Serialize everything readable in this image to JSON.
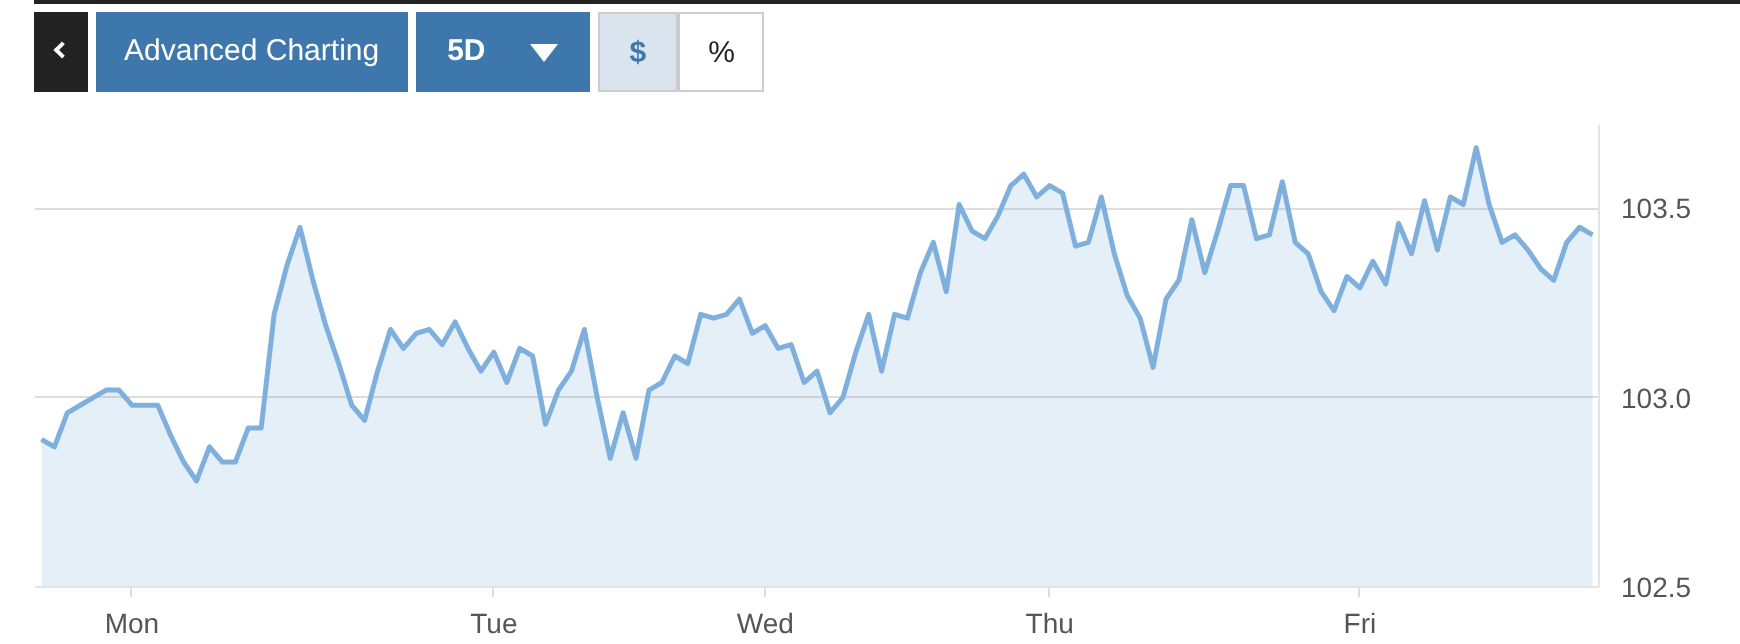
{
  "chart_data": {
    "type": "area",
    "color": "#7fb0dd",
    "categories": [
      null,
      null,
      null,
      null,
      null,
      null,
      null,
      "Mon",
      null,
      null,
      null,
      null,
      null,
      null,
      null,
      null,
      null,
      null,
      null,
      null,
      null,
      null,
      null,
      null,
      null,
      null,
      null,
      null,
      null,
      null,
      null,
      null,
      null,
      null,
      null,
      "Tue",
      null,
      null,
      null,
      null,
      null,
      null,
      null,
      null,
      null,
      null,
      null,
      null,
      null,
      null,
      null,
      null,
      null,
      null,
      null,
      null,
      "Wed",
      null,
      null,
      null,
      null,
      null,
      null,
      null,
      null,
      null,
      null,
      null,
      null,
      null,
      null,
      null,
      null,
      null,
      null,
      null,
      null,
      null,
      "Thu",
      null,
      null,
      null,
      null,
      null,
      null,
      null,
      null,
      null,
      null,
      null,
      null,
      null,
      null,
      null,
      null,
      null,
      null,
      null,
      null,
      null,
      null,
      null,
      "Fri",
      null,
      null,
      null,
      null,
      null,
      null,
      null,
      null,
      null,
      null,
      null,
      null,
      null,
      null,
      null,
      null,
      null,
      null
    ],
    "values": [
      102.89,
      102.87,
      102.96,
      102.98,
      103.0,
      103.02,
      103.02,
      102.98,
      102.98,
      102.98,
      102.9,
      102.83,
      102.78,
      102.87,
      102.83,
      102.83,
      102.92,
      102.92,
      103.22,
      103.35,
      103.45,
      103.31,
      103.19,
      103.09,
      102.98,
      102.94,
      103.07,
      103.18,
      103.13,
      103.17,
      103.18,
      103.14,
      103.2,
      103.13,
      103.07,
      103.12,
      103.04,
      103.13,
      103.11,
      102.93,
      103.02,
      103.07,
      103.18,
      103.0,
      102.84,
      102.96,
      102.84,
      103.02,
      103.04,
      103.11,
      103.09,
      103.22,
      103.21,
      103.22,
      103.26,
      103.17,
      103.19,
      103.13,
      103.14,
      103.04,
      103.07,
      102.96,
      103.0,
      103.12,
      103.22,
      103.07,
      103.22,
      103.21,
      103.33,
      103.41,
      103.28,
      103.51,
      103.44,
      103.42,
      103.48,
      103.56,
      103.59,
      103.53,
      103.56,
      103.54,
      103.4,
      103.41,
      103.53,
      103.38,
      103.27,
      103.21,
      103.08,
      103.26,
      103.31,
      103.47,
      103.33,
      103.44,
      103.56,
      103.56,
      103.42,
      103.43,
      103.57,
      103.41,
      103.38,
      103.28,
      103.23,
      103.32,
      103.29,
      103.36,
      103.3,
      103.46,
      103.38,
      103.52,
      103.39,
      103.53,
      103.51,
      103.66,
      103.51,
      103.41,
      103.43,
      103.39,
      103.34,
      103.31,
      103.41,
      103.45,
      103.43
    ],
    "ylim": [
      102.5,
      103.72
    ],
    "yticks": [
      {
        "value": 102.5,
        "label": "102.5"
      },
      {
        "value": 103,
        "label": "103.0"
      },
      {
        "value": 103.5,
        "label": "103.5"
      }
    ],
    "grid": "y",
    "annotations": [
      "Advanced Charting",
      "5D",
      "$",
      "%"
    ]
  }
}
